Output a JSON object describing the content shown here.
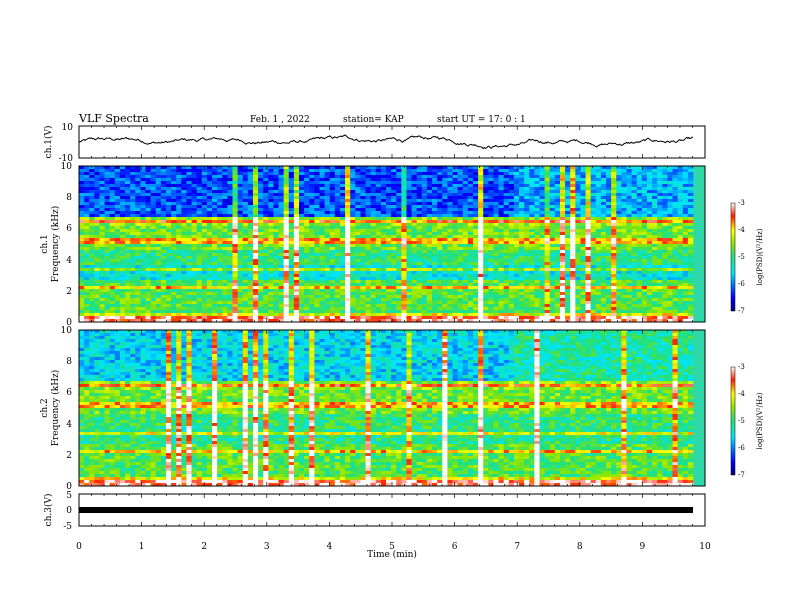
{
  "header": {
    "title": "VLF Spectra",
    "date": "Feb. 1 , 2022",
    "station": "station= KAP",
    "start": "start  UT  =   17: 0  : 1"
  },
  "chart_data": [
    {
      "type": "line",
      "ylabel": "ch.1(V)",
      "ylim": [
        -10,
        10
      ],
      "yticks": [
        "10",
        "-10"
      ],
      "xlim": [
        0,
        10
      ],
      "series": [
        {
          "trace": "random-walk, roughly -4 to 6 V",
          "color": "#000000"
        }
      ]
    },
    {
      "type": "heatmap",
      "ylabel": "ch.1\nFrequency  (kHz)",
      "ylabel_lines": [
        "ch.1",
        "Frequency  (kHz)"
      ],
      "ylim": [
        0,
        10
      ],
      "yticks": [
        "0",
        "2",
        "4",
        "6",
        "8",
        "10"
      ],
      "xlim": [
        0,
        10
      ],
      "colorbar": {
        "label": "log(PSD)(V²/Hz)",
        "range": [
          -7,
          -3
        ],
        "ticks": [
          "-3",
          "-4",
          "-5",
          "-6",
          "-7"
        ]
      }
    },
    {
      "type": "heatmap",
      "ylabel": "ch.2\nFrequency  (kHz)",
      "ylabel_lines": [
        "ch.2",
        "Frequency  (kHz)"
      ],
      "ylim": [
        0,
        10
      ],
      "yticks": [
        "0",
        "2",
        "4",
        "6",
        "8",
        "10"
      ],
      "xlim": [
        0,
        10
      ],
      "colorbar": {
        "label": "log(PSD)(V²/Hz)",
        "range": [
          -7,
          -3
        ],
        "ticks": [
          "-3",
          "-4",
          "-5",
          "-6",
          "-7"
        ]
      }
    },
    {
      "type": "line",
      "ylabel": "ch.3(V)",
      "ylim": [
        -5,
        5
      ],
      "yticks": [
        "5",
        "0",
        "-5"
      ],
      "xlim": [
        0,
        10
      ],
      "series": [
        {
          "trace": "constant near -1 V",
          "color": "#000000"
        }
      ]
    }
  ],
  "xaxis": {
    "label": "Time  (min)",
    "ticks": [
      "0",
      "1",
      "2",
      "3",
      "4",
      "5",
      "6",
      "7",
      "8",
      "9",
      "10"
    ]
  }
}
